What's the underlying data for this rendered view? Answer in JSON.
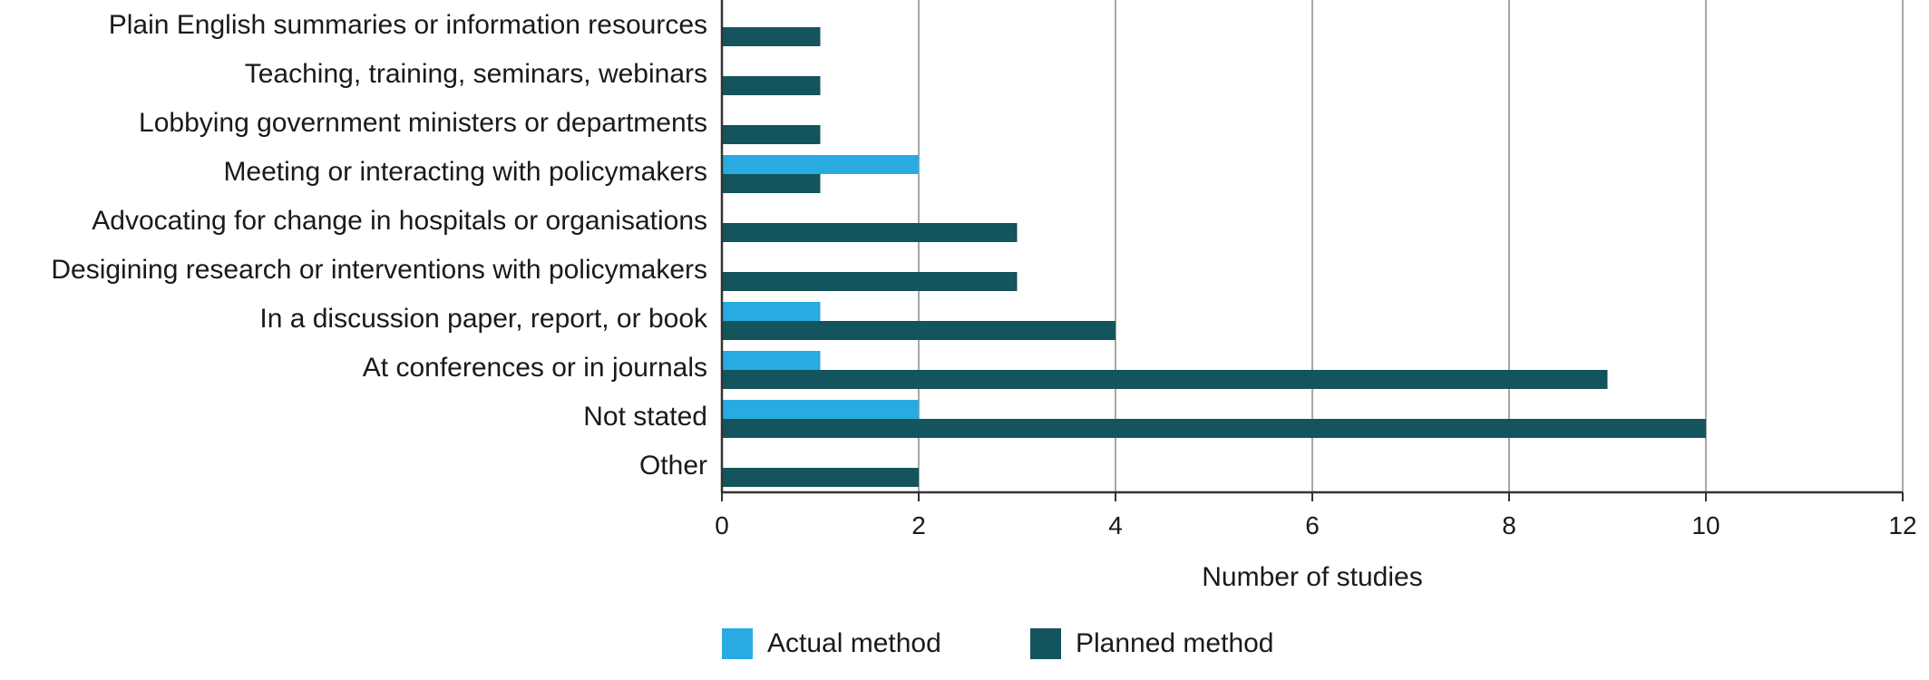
{
  "chart_data": {
    "type": "bar",
    "orientation": "horizontal",
    "categories": [
      "Plain English summaries or information resources",
      "Teaching, training, seminars, webinars",
      "Lobbying government ministers or departments",
      "Meeting or interacting with policymakers",
      "Advocating for change in hospitals or organisations",
      "Desigining research or interventions with policymakers",
      "In a discussion paper, report, or book",
      "At conferences or in journals",
      "Not stated",
      "Other"
    ],
    "series": [
      {
        "name": "Actual method",
        "color": "#29abe2",
        "values": [
          0,
          0,
          0,
          2,
          0,
          0,
          1,
          1,
          2,
          0
        ]
      },
      {
        "name": "Planned method",
        "color": "#14545c",
        "values": [
          1,
          1,
          1,
          1,
          3,
          3,
          4,
          9,
          10,
          2
        ]
      }
    ],
    "xlabel": "Number of studies",
    "ylabel": "",
    "xlim": [
      0,
      12
    ],
    "xticks": [
      "0",
      "2",
      "4",
      "6",
      "8",
      "10",
      "12"
    ],
    "grid": "vertical",
    "legend_position": "bottom"
  }
}
